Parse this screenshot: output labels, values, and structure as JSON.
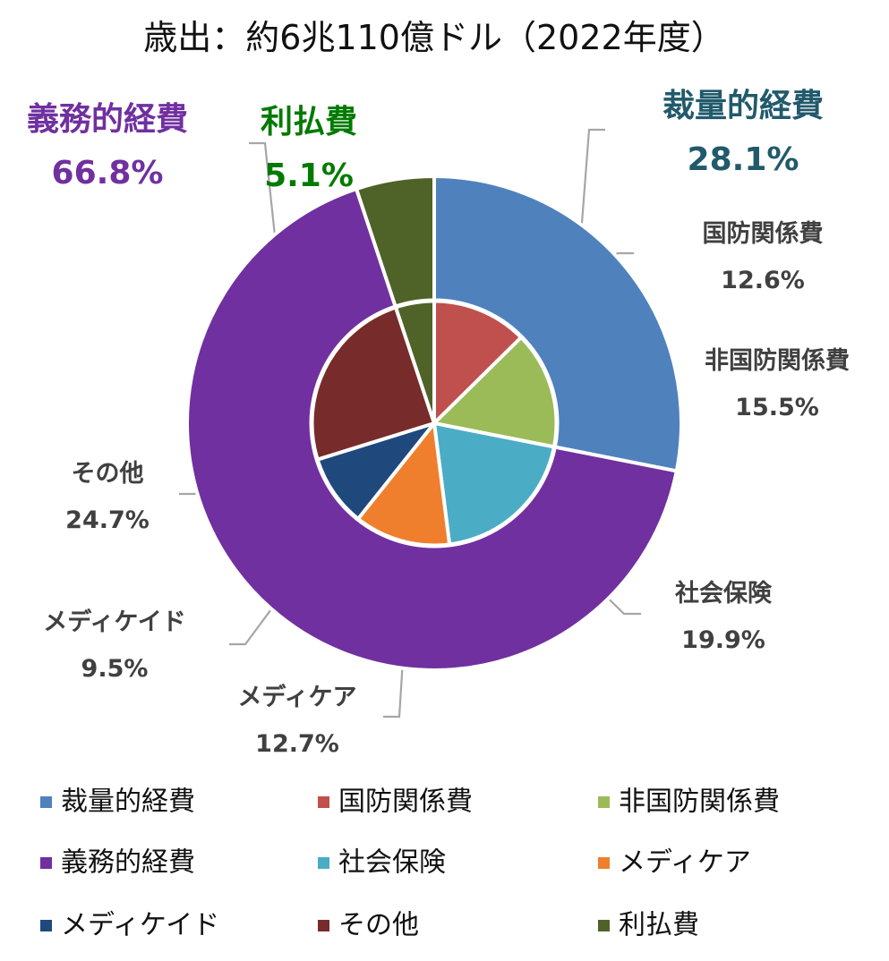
{
  "chart_data": {
    "type": "pie",
    "variant": "nested-donut",
    "title": "歳出：約6兆110億ドル（2022年度）",
    "outer_ring": [
      {
        "name": "裁量的経費",
        "value": 28.1,
        "label": "28.1%",
        "color": "#4f81bd",
        "label_color": "#215a6b"
      },
      {
        "name": "義務的経費",
        "value": 66.8,
        "label": "66.8%",
        "color": "#7030a0",
        "label_color": "#7030a0"
      },
      {
        "name": "利払費",
        "value": 5.1,
        "label": "5.1%",
        "color": "#4f6228",
        "label_color": "#007a00"
      }
    ],
    "inner_ring": [
      {
        "name": "国防関係費",
        "value": 12.6,
        "label": "12.6%",
        "color": "#c0504d"
      },
      {
        "name": "非国防関係費",
        "value": 15.5,
        "label": "15.5%",
        "color": "#9bbb59"
      },
      {
        "name": "社会保険",
        "value": 19.9,
        "label": "19.9%",
        "color": "#4bacc6"
      },
      {
        "name": "メディケア",
        "value": 12.7,
        "label": "12.7%",
        "color": "#f07f2d"
      },
      {
        "name": "メディケイド",
        "value": 9.5,
        "label": "9.5%",
        "color": "#1f497d"
      },
      {
        "name": "その他",
        "value": 24.7,
        "label": "24.7%",
        "color": "#772b2b"
      },
      {
        "name": "利払費",
        "value": 5.1,
        "label": "",
        "color": "#4f6228"
      }
    ],
    "legend": [
      {
        "name": "裁量的経費",
        "color": "#4f81bd"
      },
      {
        "name": "国防関係費",
        "color": "#c0504d"
      },
      {
        "name": "非国防関係費",
        "color": "#9bbb59"
      },
      {
        "name": "義務的経費",
        "color": "#7030a0"
      },
      {
        "name": "社会保険",
        "color": "#4bacc6"
      },
      {
        "name": "メディケア",
        "color": "#f07f2d"
      },
      {
        "name": "メディケイド",
        "color": "#1f497d"
      },
      {
        "name": "その他",
        "color": "#772b2b"
      },
      {
        "name": "利払費",
        "color": "#4f6228"
      }
    ],
    "legend_position": "bottom"
  }
}
